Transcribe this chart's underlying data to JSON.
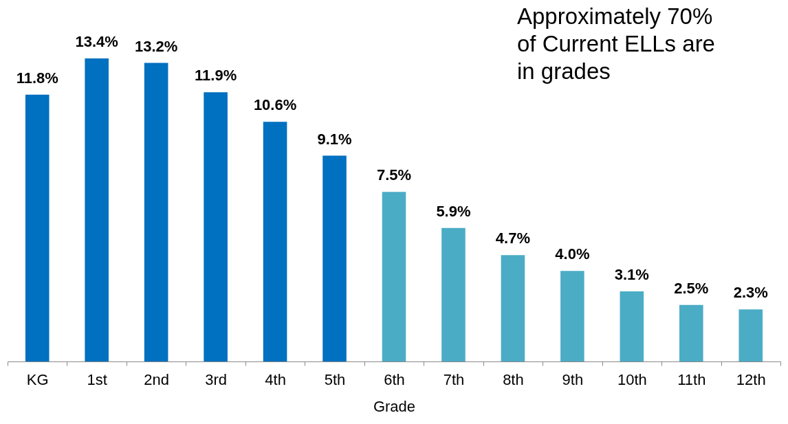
{
  "chart_data": {
    "type": "bar",
    "xlabel": "Grade",
    "categories": [
      "KG",
      "1st",
      "2nd",
      "3rd",
      "4th",
      "5th",
      "6th",
      "7th",
      "8th",
      "9th",
      "10th",
      "11th",
      "12th"
    ],
    "values": [
      11.8,
      13.4,
      13.2,
      11.9,
      10.6,
      9.1,
      7.5,
      5.9,
      4.7,
      4.0,
      3.1,
      2.5,
      2.3
    ],
    "value_labels": [
      "11.8%",
      "13.4%",
      "13.2%",
      "11.9%",
      "10.6%",
      "9.1%",
      "7.5%",
      "5.9%",
      "4.7%",
      "4.0%",
      "3.1%",
      "2.5%",
      "2.3%"
    ],
    "colors": [
      "#0070c0",
      "#0070c0",
      "#0070c0",
      "#0070c0",
      "#0070c0",
      "#0070c0",
      "#4bacc6",
      "#4bacc6",
      "#4bacc6",
      "#4bacc6",
      "#4bacc6",
      "#4bacc6",
      "#4bacc6"
    ],
    "annotations": [
      "Approximately 70% of Current ELLs are in grades"
    ]
  }
}
